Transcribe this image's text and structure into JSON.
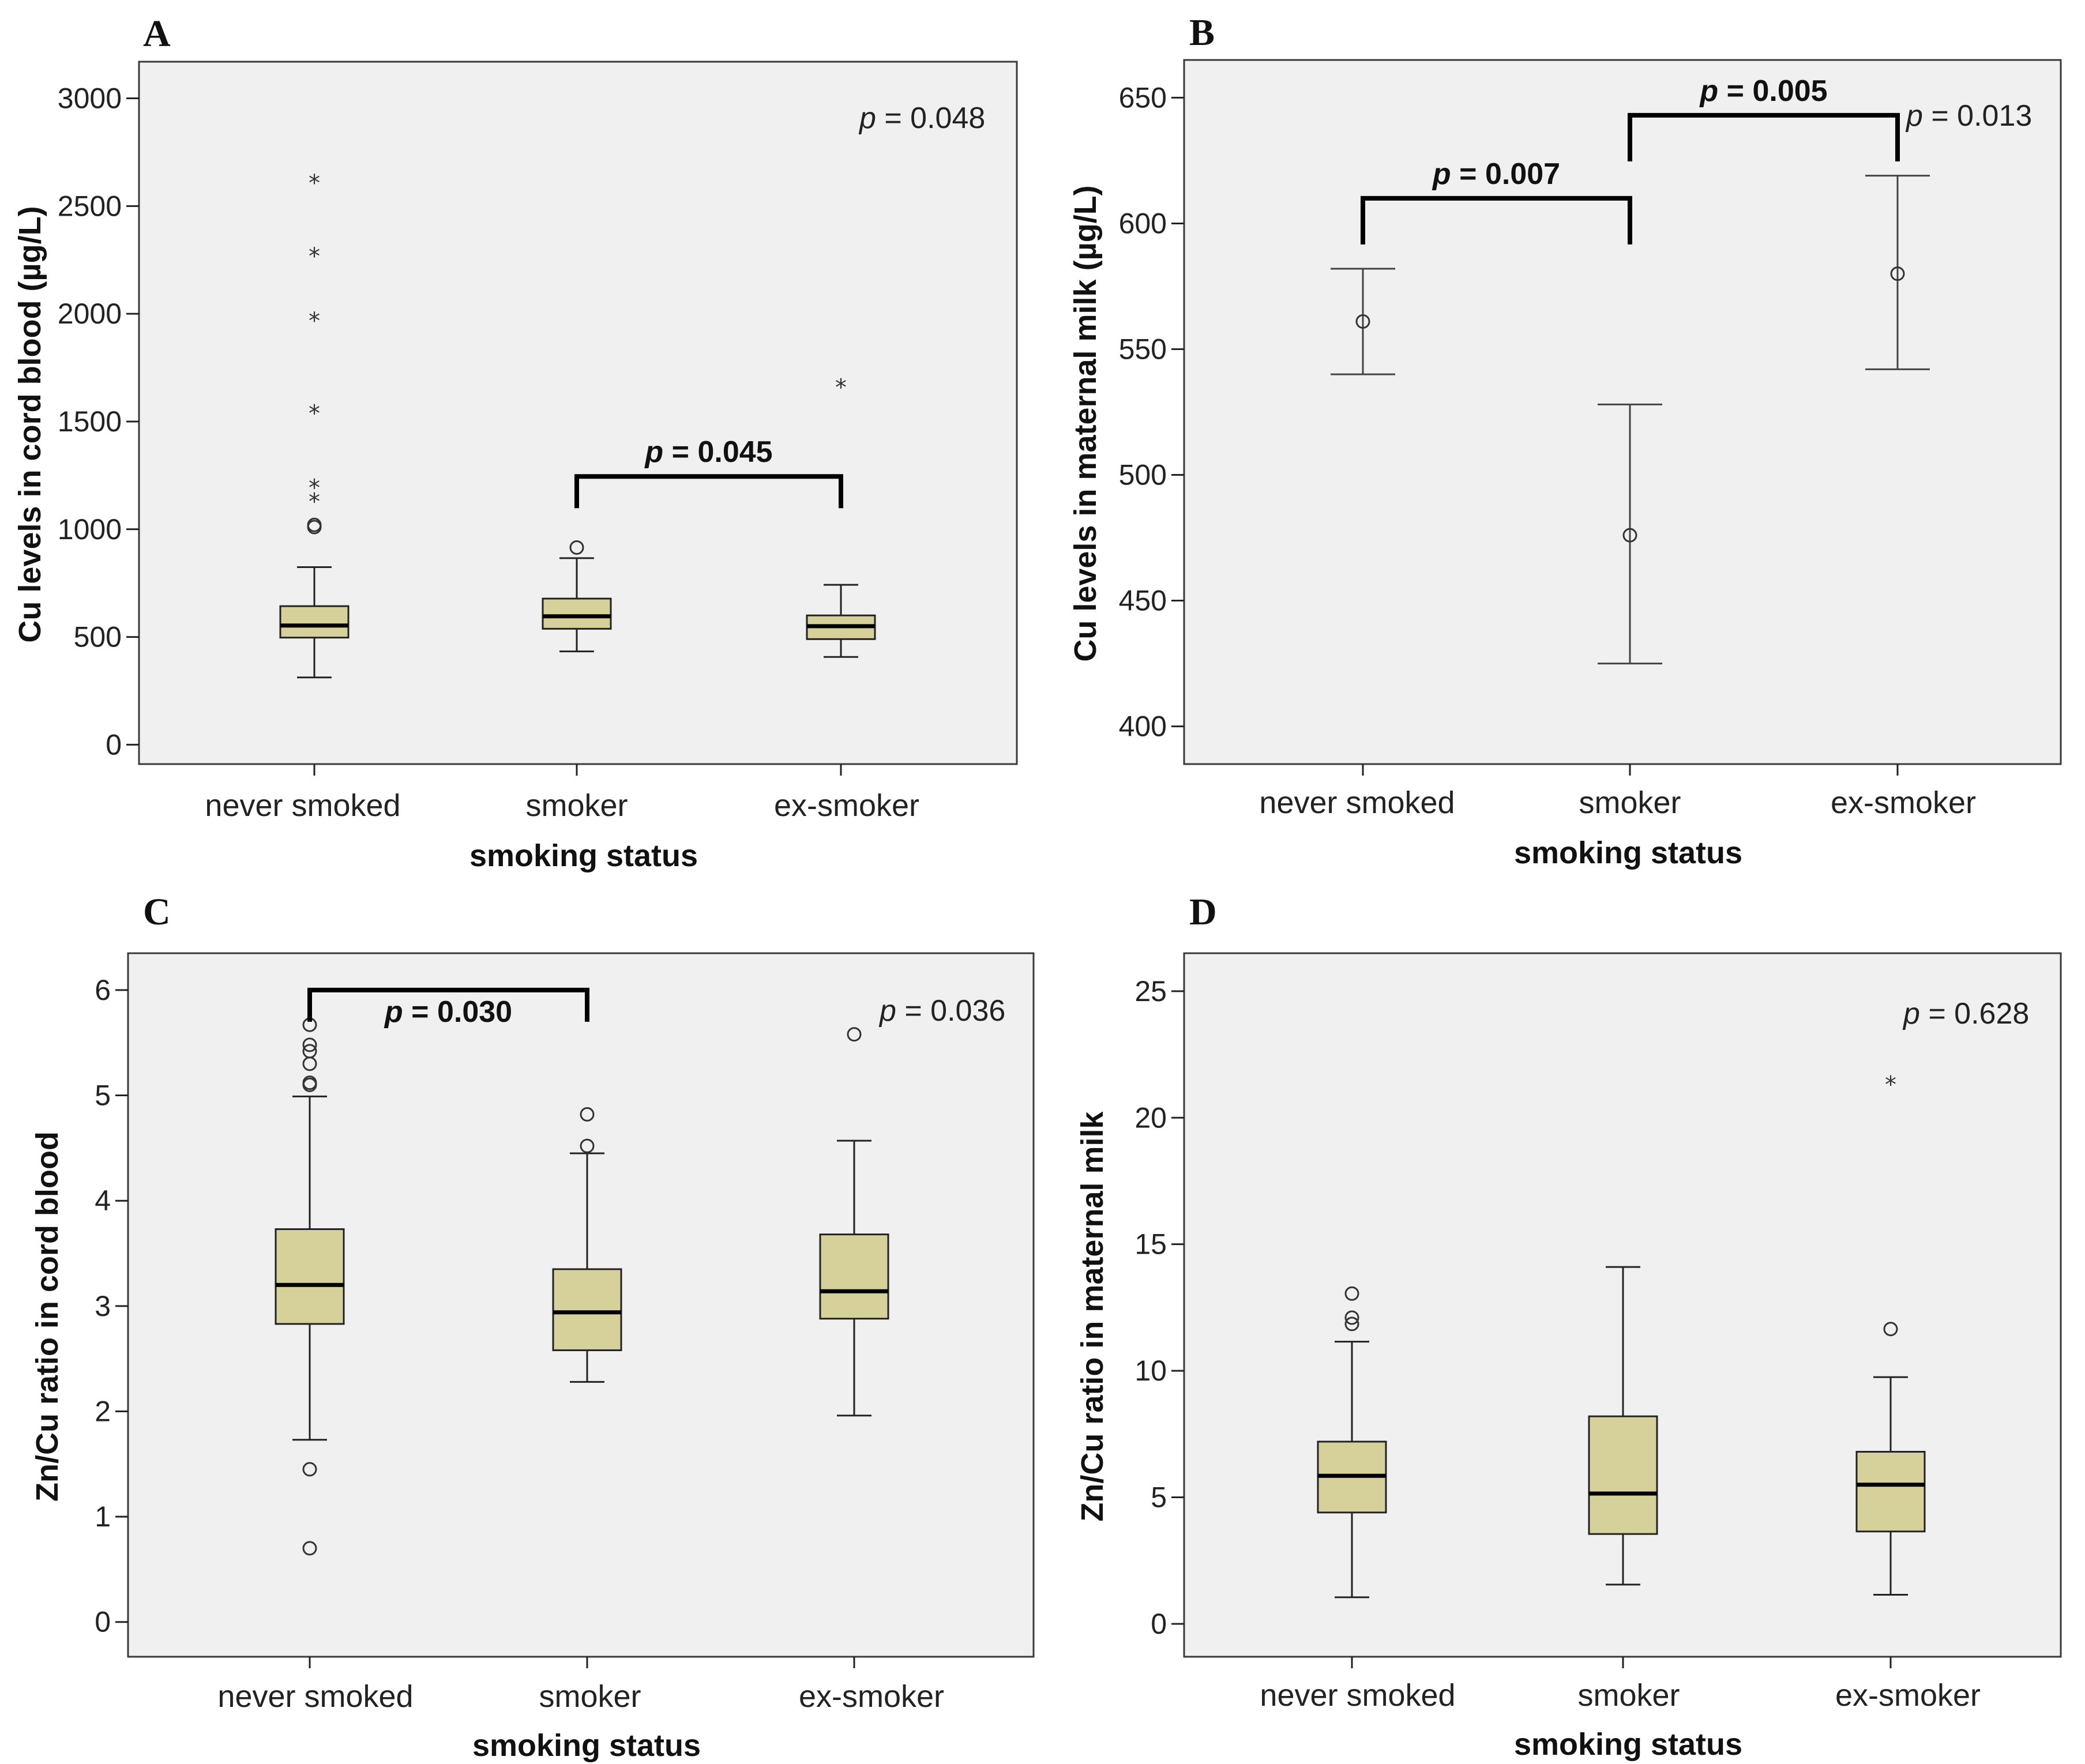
{
  "chart_data": [
    {
      "panel": "A",
      "type": "box",
      "title": "",
      "xlabel": "smoking status",
      "ylabel": "Cu levels in cord blood (µg/L)",
      "ylim": [
        -90,
        3170
      ],
      "yticks": [
        0,
        500,
        1000,
        1500,
        2000,
        2500,
        3000
      ],
      "categories": [
        "never smoked",
        "smoker",
        "ex-smoker"
      ],
      "boxes": [
        {
          "category": "never smoked",
          "q1": 497,
          "median": 553,
          "q3": 643,
          "whisker_low": 312,
          "whisker_high": 824,
          "outliers": [
            1010,
            1020
          ],
          "extremes": [
            1150,
            1215,
            1560,
            1990,
            2290,
            2630
          ]
        },
        {
          "category": "smoker",
          "q1": 538,
          "median": 596,
          "q3": 678,
          "whisker_low": 433,
          "whisker_high": 866,
          "outliers": [
            915
          ],
          "extremes": []
        },
        {
          "category": "ex-smoker",
          "q1": 490,
          "median": 550,
          "q3": 600,
          "whisker_low": 407,
          "whisker_high": 742,
          "outliers": [],
          "extremes": [
            1680
          ]
        }
      ],
      "overall_p": "0.048",
      "comparisons": [
        {
          "from": "smoker",
          "to": "ex-smoker",
          "p": "0.045",
          "y": 1245
        }
      ]
    },
    {
      "panel": "B",
      "type": "errorbar",
      "title": "",
      "xlabel": "smoking status",
      "ylabel": "Cu levels in maternal milk (µg/L)",
      "ylim": [
        385,
        665
      ],
      "yticks": [
        400,
        450,
        500,
        550,
        600,
        650
      ],
      "categories": [
        "never smoked",
        "smoker",
        "ex-smoker"
      ],
      "points": [
        {
          "category": "never smoked",
          "mean": 561,
          "lower": 540,
          "upper": 582
        },
        {
          "category": "smoker",
          "mean": 476,
          "lower": 425,
          "upper": 528
        },
        {
          "category": "ex-smoker",
          "mean": 580,
          "lower": 542,
          "upper": 619
        }
      ],
      "overall_p": "0.013",
      "comparisons": [
        {
          "from": "never smoked",
          "to": "smoker",
          "p": "0.007",
          "y": 610
        },
        {
          "from": "smoker",
          "to": "ex-smoker",
          "p": "0.005",
          "y": 643
        }
      ]
    },
    {
      "panel": "C",
      "type": "box",
      "title": "",
      "xlabel": "smoking status",
      "ylabel": "Zn/Cu ratio in cord blood",
      "ylim": [
        -0.33,
        6.35
      ],
      "yticks": [
        0,
        1,
        2,
        3,
        4,
        5,
        6
      ],
      "categories": [
        "never smoked",
        "smoker",
        "ex-smoker"
      ],
      "boxes": [
        {
          "category": "never smoked",
          "q1": 2.83,
          "median": 3.2,
          "q3": 3.73,
          "whisker_low": 1.73,
          "whisker_high": 4.99,
          "outliers": [
            0.7,
            1.45,
            5.1,
            5.12,
            5.3,
            5.42,
            5.48,
            5.67
          ],
          "extremes": []
        },
        {
          "category": "smoker",
          "q1": 2.58,
          "median": 2.94,
          "q3": 3.35,
          "whisker_low": 2.28,
          "whisker_high": 4.45,
          "outliers": [
            4.52,
            4.82
          ],
          "extremes": []
        },
        {
          "category": "ex-smoker",
          "q1": 2.88,
          "median": 3.14,
          "q3": 3.68,
          "whisker_low": 1.96,
          "whisker_high": 4.57,
          "outliers": [
            5.58
          ],
          "extremes": []
        }
      ],
      "overall_p": "0.036",
      "comparisons": [
        {
          "from": "never smoked",
          "to": "smoker",
          "p": "0.030",
          "y": 6.0
        }
      ]
    },
    {
      "panel": "D",
      "type": "box",
      "title": "",
      "xlabel": "smoking status",
      "ylabel": "Zn/Cu ratio in maternal milk",
      "ylim": [
        -1.3,
        26.5
      ],
      "yticks": [
        0,
        5,
        10,
        15,
        20,
        25
      ],
      "categories": [
        "never smoked",
        "smoker",
        "ex-smoker"
      ],
      "boxes": [
        {
          "category": "never smoked",
          "q1": 4.4,
          "median": 5.85,
          "q3": 7.2,
          "whisker_low": 1.05,
          "whisker_high": 11.15,
          "outliers": [
            11.85,
            12.1,
            13.05
          ],
          "extremes": []
        },
        {
          "category": "smoker",
          "q1": 3.55,
          "median": 5.15,
          "q3": 8.2,
          "whisker_low": 1.55,
          "whisker_high": 14.1,
          "outliers": [],
          "extremes": []
        },
        {
          "category": "ex-smoker",
          "q1": 3.65,
          "median": 5.5,
          "q3": 6.8,
          "whisker_low": 1.15,
          "whisker_high": 9.75,
          "outliers": [
            11.65
          ],
          "extremes": [
            21.5
          ]
        }
      ],
      "overall_p": "0.628",
      "comparisons": []
    }
  ],
  "p_prefix": "p",
  "p_sep": " = ",
  "extreme_symbol": "*"
}
